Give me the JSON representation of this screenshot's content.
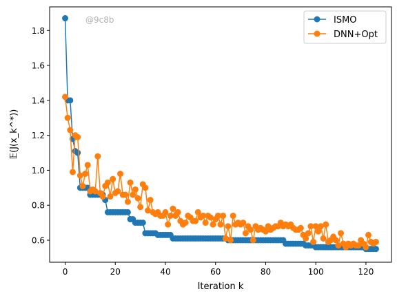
{
  "chart_data": {
    "type": "line",
    "title": "",
    "xlabel": "Iteration k",
    "ylabel": "𝔼(J(x_k^*))",
    "watermark": "@9c8b",
    "xlim": [
      -6.2,
      130.2
    ],
    "ylim": [
      0.474,
      1.935
    ],
    "xticks": [
      0,
      20,
      40,
      60,
      80,
      100,
      120
    ],
    "yticks": [
      0.6,
      0.8,
      1.0,
      1.2,
      1.4,
      1.6,
      1.8
    ],
    "legend_position": "top-right",
    "grid": false,
    "series": [
      {
        "name": "ISMO",
        "color": "#1f77b4",
        "x": [
          0,
          1,
          2,
          3,
          4,
          5,
          6,
          7,
          8,
          9,
          10,
          11,
          12,
          13,
          14,
          15,
          16,
          17,
          18,
          19,
          20,
          21,
          22,
          23,
          24,
          25,
          26,
          27,
          28,
          29,
          30,
          31,
          32,
          33,
          34,
          35,
          36,
          37,
          38,
          39,
          40,
          41,
          42,
          43,
          44,
          45,
          46,
          47,
          48,
          49,
          50,
          51,
          52,
          53,
          54,
          55,
          56,
          57,
          58,
          59,
          60,
          61,
          62,
          63,
          64,
          65,
          66,
          67,
          68,
          69,
          70,
          71,
          72,
          73,
          74,
          75,
          76,
          77,
          78,
          79,
          80,
          81,
          82,
          83,
          84,
          85,
          86,
          87,
          88,
          89,
          90,
          91,
          92,
          93,
          94,
          95,
          96,
          97,
          98,
          99,
          100,
          101,
          102,
          103,
          104,
          105,
          106,
          107,
          108,
          109,
          110,
          111,
          112,
          113,
          114,
          115,
          116,
          117,
          118,
          119,
          120,
          121,
          122,
          123,
          124
        ],
        "y": [
          1.87,
          1.4,
          1.4,
          1.18,
          1.11,
          1.1,
          0.9,
          0.9,
          0.9,
          0.9,
          0.86,
          0.86,
          0.86,
          0.86,
          0.86,
          0.86,
          0.83,
          0.76,
          0.76,
          0.76,
          0.76,
          0.76,
          0.76,
          0.76,
          0.76,
          0.76,
          0.72,
          0.72,
          0.7,
          0.7,
          0.7,
          0.7,
          0.64,
          0.64,
          0.64,
          0.64,
          0.64,
          0.63,
          0.63,
          0.63,
          0.63,
          0.63,
          0.63,
          0.61,
          0.61,
          0.61,
          0.61,
          0.61,
          0.61,
          0.61,
          0.61,
          0.61,
          0.61,
          0.61,
          0.61,
          0.61,
          0.61,
          0.61,
          0.61,
          0.61,
          0.61,
          0.61,
          0.61,
          0.61,
          0.61,
          0.6,
          0.6,
          0.6,
          0.6,
          0.6,
          0.6,
          0.6,
          0.6,
          0.6,
          0.6,
          0.6,
          0.6,
          0.6,
          0.6,
          0.6,
          0.6,
          0.6,
          0.6,
          0.6,
          0.6,
          0.6,
          0.6,
          0.6,
          0.58,
          0.58,
          0.58,
          0.58,
          0.58,
          0.58,
          0.58,
          0.58,
          0.57,
          0.57,
          0.57,
          0.57,
          0.56,
          0.56,
          0.56,
          0.56,
          0.56,
          0.56,
          0.56,
          0.56,
          0.56,
          0.56,
          0.56,
          0.56,
          0.56,
          0.56,
          0.56,
          0.56,
          0.56,
          0.56,
          0.56,
          0.56,
          0.55,
          0.55,
          0.55,
          0.55,
          0.55
        ]
      },
      {
        "name": "DNN+Opt",
        "color": "#ff7f0e",
        "x": [
          0,
          1,
          2,
          3,
          4,
          5,
          6,
          7,
          8,
          9,
          10,
          11,
          12,
          13,
          14,
          15,
          16,
          17,
          18,
          19,
          20,
          21,
          22,
          23,
          24,
          25,
          26,
          27,
          28,
          29,
          30,
          31,
          32,
          33,
          34,
          35,
          36,
          37,
          38,
          39,
          40,
          41,
          42,
          43,
          44,
          45,
          46,
          47,
          48,
          49,
          50,
          51,
          52,
          53,
          54,
          55,
          56,
          57,
          58,
          59,
          60,
          61,
          62,
          63,
          64,
          65,
          66,
          67,
          68,
          69,
          70,
          71,
          72,
          73,
          74,
          75,
          76,
          77,
          78,
          79,
          80,
          81,
          82,
          83,
          84,
          85,
          86,
          87,
          88,
          89,
          90,
          91,
          92,
          93,
          94,
          95,
          96,
          97,
          98,
          99,
          100,
          101,
          102,
          103,
          104,
          105,
          106,
          107,
          108,
          109,
          110,
          111,
          112,
          113,
          114,
          115,
          116,
          117,
          118,
          119,
          120,
          121,
          122,
          123,
          124
        ],
        "y": [
          1.42,
          1.3,
          1.23,
          0.99,
          1.2,
          1.19,
          0.97,
          0.91,
          0.98,
          1.03,
          0.88,
          0.89,
          0.88,
          1.08,
          0.87,
          0.85,
          0.91,
          0.93,
          0.85,
          0.95,
          0.87,
          0.88,
          0.98,
          0.86,
          0.86,
          0.82,
          0.93,
          0.86,
          0.89,
          0.84,
          0.79,
          0.92,
          0.9,
          0.77,
          0.83,
          0.76,
          0.75,
          0.76,
          0.74,
          0.74,
          0.76,
          0.69,
          0.74,
          0.78,
          0.74,
          0.76,
          0.71,
          0.69,
          0.7,
          0.74,
          0.73,
          0.71,
          0.71,
          0.76,
          0.73,
          0.74,
          0.7,
          0.74,
          0.73,
          0.69,
          0.72,
          0.74,
          0.69,
          0.74,
          0.61,
          0.68,
          0.6,
          0.74,
          0.69,
          0.7,
          0.69,
          0.7,
          0.64,
          0.68,
          0.66,
          0.6,
          0.68,
          0.66,
          0.67,
          0.66,
          0.65,
          0.68,
          0.66,
          0.67,
          0.68,
          0.68,
          0.7,
          0.68,
          0.69,
          0.68,
          0.69,
          0.67,
          0.66,
          0.66,
          0.67,
          0.63,
          0.61,
          0.64,
          0.68,
          0.59,
          0.68,
          0.65,
          0.68,
          0.61,
          0.69,
          0.59,
          0.6,
          0.62,
          0.6,
          0.57,
          0.64,
          0.58,
          0.56,
          0.58,
          0.57,
          0.58,
          0.57,
          0.57,
          0.6,
          0.58,
          0.56,
          0.63,
          0.59,
          0.58,
          0.59
        ]
      }
    ]
  }
}
